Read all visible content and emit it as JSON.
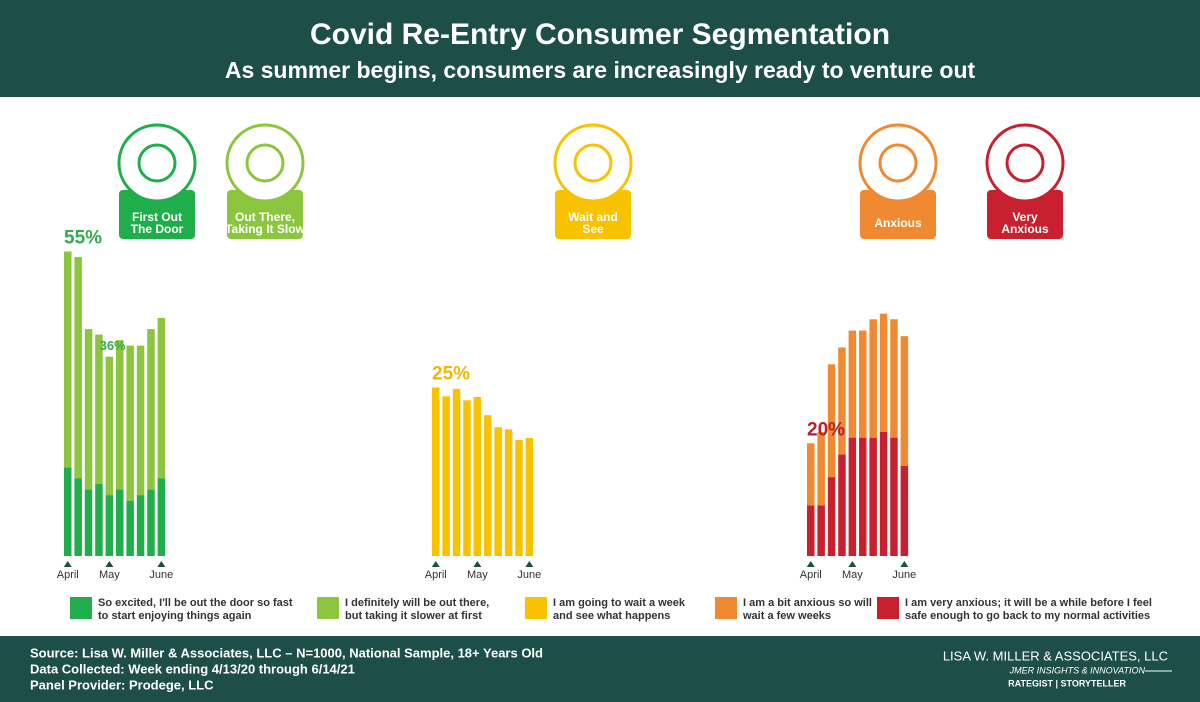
{
  "header": {
    "title": "Covid Re-Entry Consumer Segmentation",
    "subtitle": "As summer begins, consumers are increasingly ready to venture out"
  },
  "segments": [
    {
      "label_lines": [
        "First Out",
        "The Door"
      ],
      "color": "#1fae4b"
    },
    {
      "label_lines": [
        "Out There,",
        "Taking It Slow"
      ],
      "color": "#8cc63f"
    },
    {
      "label_lines": [
        "Wait and",
        "See"
      ],
      "color": "#f8c200"
    },
    {
      "label_lines": [
        "Anxious"
      ],
      "color": "#f08a32"
    },
    {
      "label_lines": [
        "Very",
        "Anxious"
      ],
      "color": "#c8202f"
    }
  ],
  "chart_data": [
    {
      "type": "bar",
      "stacked": true,
      "categories": [
        "April",
        null,
        null,
        null,
        "May",
        null,
        null,
        null,
        null,
        "June"
      ],
      "series": [
        {
          "name": "So excited, I'll be out the door so fast to start enjoying things again",
          "color": "#1fae4b",
          "values": [
            16,
            14,
            12,
            13,
            11,
            12,
            10,
            11,
            12,
            14
          ]
        },
        {
          "name": "I definitely will be out there, but taking it slower at first",
          "color": "#8cc63f",
          "values": [
            39,
            40,
            29,
            27,
            25,
            27,
            28,
            27,
            29,
            29
          ]
        }
      ],
      "ylim": [
        0,
        56
      ],
      "annotations": [
        {
          "index": 0,
          "value": 55,
          "label": "55%",
          "color": "#2fae4b"
        },
        {
          "index": 4,
          "value": 36,
          "label": "36%",
          "color": "#2fae4b"
        }
      ]
    },
    {
      "type": "bar",
      "stacked": true,
      "categories": [
        "April",
        null,
        null,
        null,
        "May",
        null,
        null,
        null,
        null,
        "June"
      ],
      "series": [
        {
          "name": "I am going to wait a week and see what happens",
          "color": "#f8c200",
          "values": [
            25,
            23.7,
            24.8,
            23.1,
            23.6,
            20.9,
            19.1,
            18.8,
            17.2,
            17.5
          ]
        }
      ],
      "ylim": [
        0,
        46
      ],
      "annotations": [
        {
          "index": 0,
          "value": 25,
          "label": "25%",
          "color": "#f2b800"
        }
      ]
    },
    {
      "type": "bar",
      "stacked": true,
      "categories": [
        "April",
        null,
        null,
        null,
        "May",
        null,
        null,
        null,
        null,
        "June"
      ],
      "series": [
        {
          "name": "I am very anxious; it will be a while before I feel safe enough to go back to my normal activities",
          "color": "#c8202f",
          "values": [
            9,
            9,
            14,
            18,
            21,
            21,
            21,
            22,
            21,
            16
          ]
        },
        {
          "name": "I am a bit anxious so will wait a few weeks",
          "color": "#f08a32",
          "values": [
            11,
            13,
            20,
            19,
            19,
            19,
            21,
            21,
            21,
            23
          ]
        }
      ],
      "ylim": [
        0,
        55
      ],
      "annotations": [
        {
          "index": 0,
          "value": 20,
          "label": "20%",
          "color": "#b8202c"
        }
      ]
    }
  ],
  "footer": {
    "lines": [
      "Source: Lisa W. Miller & Associates, LLC  –  N=1000,  National Sample, 18+ Years Old",
      "Data Collected: Week ending 4/13/20 through 6/14/21",
      "Panel Provider:  Prodege, LLC"
    ],
    "brand": [
      "LISA W. MILLER & ASSOCIATES, LLC",
      "JMER INSIGHTS & INNOVATION",
      "RATEGIST | STORYTELLER"
    ]
  }
}
